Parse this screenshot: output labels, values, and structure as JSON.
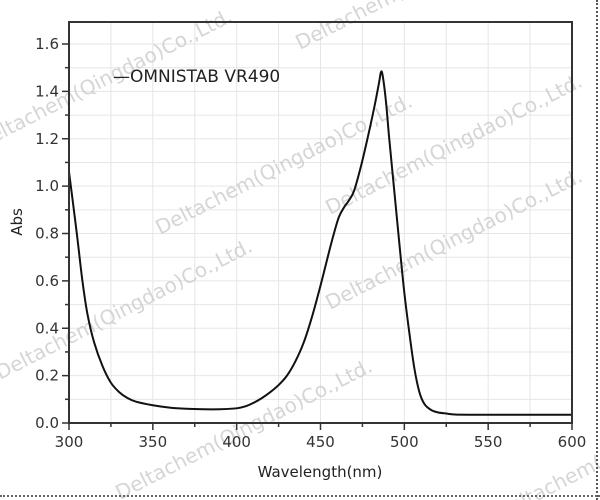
{
  "chart_data": {
    "type": "line",
    "title": "",
    "xlabel": "Wavelength(nm)",
    "ylabel": "Abs",
    "xlim": [
      300,
      600
    ],
    "ylim": [
      0.0,
      1.7
    ],
    "xticks": [
      300,
      350,
      400,
      450,
      500,
      550,
      600
    ],
    "xtick_labels": [
      "300",
      "350",
      "400",
      "450",
      "500",
      "550",
      "600"
    ],
    "yticks": [
      0.0,
      0.2,
      0.4,
      0.6,
      0.8,
      1.0,
      1.2,
      1.4,
      1.6
    ],
    "ytick_labels": [
      "0.0",
      "0.2",
      "0.4",
      "0.6",
      "0.8",
      "1.0",
      "1.2",
      "1.4",
      "1.6"
    ],
    "grid": true,
    "legend": {
      "position": "upper-left",
      "entries": [
        "OMNISTAB VR490"
      ]
    },
    "series": [
      {
        "name": "OMNISTAB VR490",
        "color": "#111111",
        "x": [
          300,
          302,
          305,
          308,
          311,
          315,
          320,
          325,
          330,
          335,
          340,
          350,
          360,
          370,
          380,
          390,
          400,
          405,
          410,
          415,
          420,
          425,
          430,
          435,
          440,
          445,
          450,
          455,
          458,
          461,
          464,
          467,
          470,
          474,
          478,
          482,
          485,
          486,
          487,
          489,
          491,
          494,
          497,
          500,
          503,
          506,
          509,
          512,
          516,
          520,
          525,
          530,
          540,
          550,
          560,
          580,
          600
        ],
        "values": [
          1.06,
          0.95,
          0.78,
          0.6,
          0.46,
          0.34,
          0.24,
          0.17,
          0.13,
          0.105,
          0.09,
          0.075,
          0.065,
          0.06,
          0.058,
          0.058,
          0.062,
          0.07,
          0.085,
          0.105,
          0.13,
          0.16,
          0.2,
          0.26,
          0.34,
          0.45,
          0.58,
          0.72,
          0.8,
          0.87,
          0.91,
          0.94,
          0.98,
          1.08,
          1.2,
          1.33,
          1.44,
          1.48,
          1.47,
          1.36,
          1.2,
          0.98,
          0.76,
          0.55,
          0.38,
          0.23,
          0.13,
          0.08,
          0.055,
          0.045,
          0.04,
          0.036,
          0.035,
          0.035,
          0.035,
          0.035,
          0.035
        ]
      }
    ],
    "annotations": {
      "peak": {
        "x": 486,
        "y": 1.48
      },
      "shoulder": {
        "x": 463,
        "y": 0.9
      }
    }
  },
  "watermark": {
    "text": "Deltachem(Qingdao)Co.,Ltd."
  },
  "legend_prefix": "—"
}
